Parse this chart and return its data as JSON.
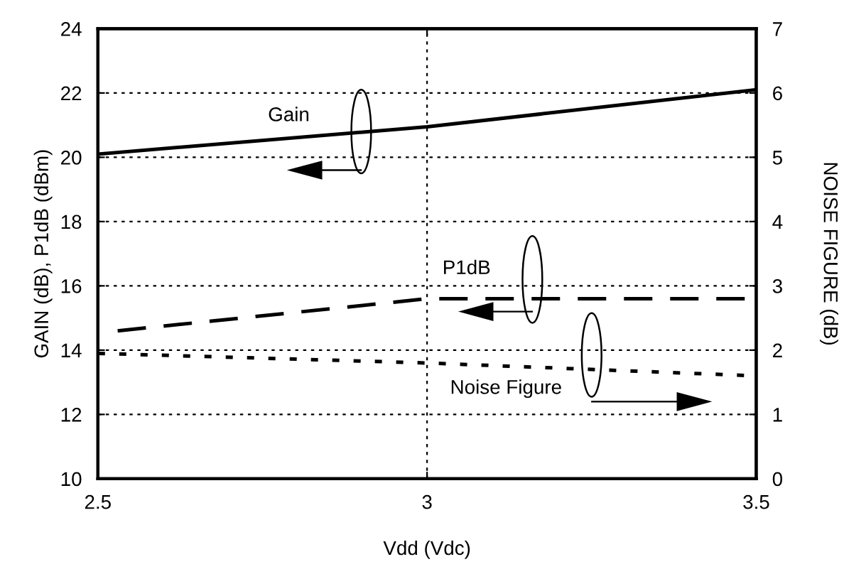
{
  "chart_data": {
    "type": "line",
    "xlabel": "Vdd (Vdc)",
    "ylabel": "GAIN (dB), P1dB (dBm)",
    "y2label": "NOISE FIGURE (dB)",
    "xlim": [
      2.5,
      3.5
    ],
    "xticks": [
      2.5,
      3,
      3.5
    ],
    "ylim": [
      10,
      24
    ],
    "yticks": [
      10,
      12,
      14,
      16,
      18,
      20,
      22,
      24
    ],
    "y2lim": [
      0,
      7
    ],
    "y2ticks": [
      0,
      1,
      2,
      3,
      4,
      5,
      6,
      7
    ],
    "grid": true,
    "legend": false,
    "marker": "none",
    "series": [
      {
        "color": "#000000",
        "line_style": "solid",
        "x": [
          2.5,
          3.0,
          3.5
        ],
        "values": [
          20.1,
          20.95,
          22.1
        ]
      },
      {
        "color": "#000000",
        "line_style": "dashed",
        "x": [
          2.53,
          3.0,
          3.5
        ],
        "values": [
          14.6,
          15.6,
          15.6
        ]
      },
      {
        "color": "#000000",
        "line_style": "dotted",
        "axis": "y2",
        "x": [
          2.5,
          3.0,
          3.5
        ],
        "values": [
          1.95,
          1.8,
          1.6
        ]
      }
    ],
    "annotations": [
      "Gain",
      "P1dB",
      "Noise Figure"
    ]
  }
}
